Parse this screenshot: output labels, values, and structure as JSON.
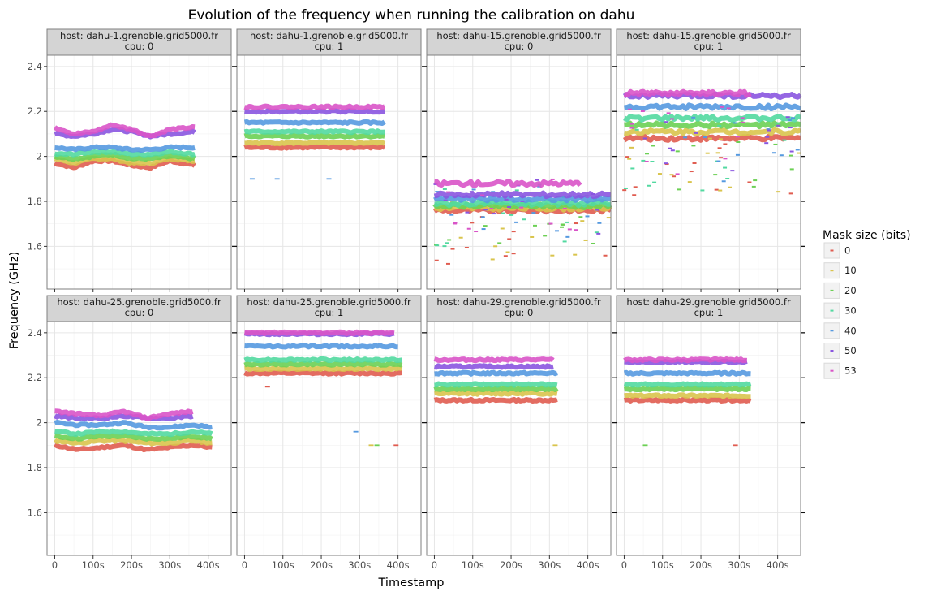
{
  "chart_data": {
    "type": "scatter",
    "title": "Evolution of the frequency when running the calibration on dahu",
    "xlabel": "Timestamp",
    "ylabel": "Frequency (GHz)",
    "xlim": [
      -20,
      460
    ],
    "ylim": [
      1.41,
      2.45
    ],
    "x_ticks": [
      0,
      100,
      200,
      300,
      400
    ],
    "x_tick_labels": [
      "0",
      "100s",
      "200s",
      "300s",
      "400s"
    ],
    "y_ticks": [
      1.6,
      1.8,
      2.0,
      2.2,
      2.4
    ],
    "y_tick_labels": [
      "1.6",
      "1.8",
      "2",
      "2.2",
      "2.4"
    ],
    "grid": true,
    "legend": {
      "title": "Mask size (bits)",
      "placement": "right",
      "entries": [
        "0",
        "10",
        "20",
        "30",
        "40",
        "50",
        "53"
      ]
    },
    "series_colors": {
      "0": "#e05c50",
      "10": "#d9c44c",
      "20": "#6cd054",
      "30": "#52d9a0",
      "40": "#5599e0",
      "50": "#8a55e0",
      "53": "#d954c8"
    },
    "panels": [
      {
        "host_label": "host: dahu-1.grenoble.grid5000.fr",
        "cpu_label": "cpu: 0",
        "x_end": 365,
        "series": [
          {
            "name": "0",
            "x": [
              0,
              50,
              100,
              150,
              200,
              250,
              300,
              365
            ],
            "y": [
              1.97,
              1.95,
              1.98,
              1.98,
              1.96,
              1.95,
              1.98,
              1.96
            ]
          },
          {
            "name": "10",
            "x": [
              0,
              50,
              100,
              150,
              200,
              250,
              300,
              365
            ],
            "y": [
              1.99,
              1.97,
              1.99,
              1.99,
              1.97,
              1.97,
              1.99,
              1.98
            ]
          },
          {
            "name": "20",
            "x": [
              0,
              50,
              100,
              150,
              200,
              250,
              300,
              365
            ],
            "y": [
              2.0,
              1.99,
              2.0,
              2.01,
              1.99,
              1.99,
              2.0,
              1.99
            ]
          },
          {
            "name": "30",
            "x": [
              0,
              50,
              100,
              150,
              200,
              250,
              300,
              365
            ],
            "y": [
              2.01,
              2.01,
              2.02,
              2.02,
              2.01,
              2.01,
              2.02,
              2.01
            ]
          },
          {
            "name": "40",
            "x": [
              0,
              50,
              100,
              150,
              200,
              250,
              300,
              365
            ],
            "y": [
              2.04,
              2.03,
              2.04,
              2.04,
              2.03,
              2.03,
              2.04,
              2.04
            ]
          },
          {
            "name": "50",
            "x": [
              0,
              50,
              100,
              150,
              200,
              250,
              300,
              365
            ],
            "y": [
              2.1,
              2.09,
              2.1,
              2.12,
              2.11,
              2.09,
              2.1,
              2.11
            ]
          },
          {
            "name": "53",
            "x": [
              0,
              50,
              100,
              150,
              200,
              250,
              300,
              365
            ],
            "y": [
              2.13,
              2.1,
              2.11,
              2.14,
              2.12,
              2.09,
              2.12,
              2.13
            ]
          }
        ],
        "outliers": []
      },
      {
        "host_label": "host: dahu-1.grenoble.grid5000.fr",
        "cpu_label": "cpu: 1",
        "x_end": 365,
        "series": [
          {
            "name": "0",
            "x": [
              0,
              365
            ],
            "y": [
              2.04,
              2.04
            ]
          },
          {
            "name": "10",
            "x": [
              0,
              365
            ],
            "y": [
              2.06,
              2.06
            ]
          },
          {
            "name": "20",
            "x": [
              0,
              365
            ],
            "y": [
              2.09,
              2.09
            ]
          },
          {
            "name": "30",
            "x": [
              0,
              365
            ],
            "y": [
              2.11,
              2.11
            ]
          },
          {
            "name": "40",
            "x": [
              0,
              365
            ],
            "y": [
              2.15,
              2.15
            ]
          },
          {
            "name": "50",
            "x": [
              0,
              365
            ],
            "y": [
              2.2,
              2.2
            ]
          },
          {
            "name": "53",
            "x": [
              0,
              365
            ],
            "y": [
              2.22,
              2.22
            ]
          }
        ],
        "outliers": [
          {
            "name": "40",
            "x": 20,
            "y": 1.9
          },
          {
            "name": "40",
            "x": 85,
            "y": 1.9
          },
          {
            "name": "40",
            "x": 220,
            "y": 1.9
          }
        ]
      },
      {
        "host_label": "host: dahu-15.grenoble.grid5000.fr",
        "cpu_label": "cpu: 0",
        "x_end": 460,
        "series": [
          {
            "name": "0",
            "x": [
              0,
              460
            ],
            "y": [
              1.76,
              1.76
            ]
          },
          {
            "name": "10",
            "x": [
              0,
              460
            ],
            "y": [
              1.77,
              1.77
            ]
          },
          {
            "name": "20",
            "x": [
              0,
              460
            ],
            "y": [
              1.78,
              1.78
            ]
          },
          {
            "name": "30",
            "x": [
              0,
              460
            ],
            "y": [
              1.79,
              1.79
            ]
          },
          {
            "name": "40",
            "x": [
              0,
              460
            ],
            "y": [
              1.81,
              1.81
            ]
          },
          {
            "name": "50",
            "x": [
              0,
              460
            ],
            "y": [
              1.83,
              1.83
            ]
          },
          {
            "name": "53",
            "x": [
              0,
              380
            ],
            "y": [
              1.88,
              1.88
            ]
          }
        ],
        "outliers": []
      },
      {
        "host_label": "host: dahu-15.grenoble.grid5000.fr",
        "cpu_label": "cpu: 1",
        "x_end": 460,
        "series": [
          {
            "name": "0",
            "x": [
              0,
              460
            ],
            "y": [
              2.08,
              2.08
            ]
          },
          {
            "name": "10",
            "x": [
              0,
              460
            ],
            "y": [
              2.11,
              2.11
            ]
          },
          {
            "name": "20",
            "x": [
              0,
              460
            ],
            "y": [
              2.14,
              2.14
            ]
          },
          {
            "name": "30",
            "x": [
              0,
              460
            ],
            "y": [
              2.17,
              2.17
            ]
          },
          {
            "name": "40",
            "x": [
              0,
              460
            ],
            "y": [
              2.22,
              2.22
            ]
          },
          {
            "name": "50",
            "x": [
              0,
              460
            ],
            "y": [
              2.27,
              2.27
            ]
          },
          {
            "name": "53",
            "x": [
              0,
              330
            ],
            "y": [
              2.28,
              2.28
            ]
          }
        ],
        "outliers": []
      },
      {
        "host_label": "host: dahu-25.grenoble.grid5000.fr",
        "cpu_label": "cpu: 0",
        "x_end": 410,
        "series": [
          {
            "name": "0",
            "x": [
              0,
              60,
              120,
              180,
              240,
              300,
              360,
              410
            ],
            "y": [
              1.9,
              1.88,
              1.89,
              1.9,
              1.88,
              1.89,
              1.9,
              1.89
            ]
          },
          {
            "name": "10",
            "x": [
              0,
              60,
              120,
              180,
              240,
              300,
              360,
              410
            ],
            "y": [
              1.92,
              1.91,
              1.92,
              1.92,
              1.91,
              1.91,
              1.92,
              1.91
            ]
          },
          {
            "name": "20",
            "x": [
              0,
              60,
              120,
              180,
              240,
              300,
              360,
              410
            ],
            "y": [
              1.94,
              1.93,
              1.94,
              1.94,
              1.93,
              1.93,
              1.94,
              1.93
            ]
          },
          {
            "name": "30",
            "x": [
              0,
              60,
              120,
              180,
              240,
              300,
              360,
              410
            ],
            "y": [
              1.96,
              1.95,
              1.96,
              1.96,
              1.95,
              1.95,
              1.96,
              1.95
            ]
          },
          {
            "name": "40",
            "x": [
              0,
              60,
              120,
              180,
              240,
              300,
              360,
              410
            ],
            "y": [
              2.0,
              1.99,
              1.99,
              2.0,
              1.98,
              1.98,
              1.99,
              1.98
            ]
          },
          {
            "name": "50",
            "x": [
              0,
              60,
              120,
              180,
              240,
              300,
              360
            ],
            "y": [
              2.03,
              2.02,
              2.02,
              2.03,
              2.02,
              2.02,
              2.03
            ]
          },
          {
            "name": "53",
            "x": [
              0,
              60,
              120,
              180,
              240,
              300,
              360
            ],
            "y": [
              2.05,
              2.04,
              2.03,
              2.05,
              2.02,
              2.04,
              2.05
            ]
          }
        ],
        "outliers": []
      },
      {
        "host_label": "host: dahu-25.grenoble.grid5000.fr",
        "cpu_label": "cpu: 1",
        "x_end": 410,
        "series": [
          {
            "name": "0",
            "x": [
              0,
              410
            ],
            "y": [
              2.22,
              2.22
            ]
          },
          {
            "name": "10",
            "x": [
              0,
              410
            ],
            "y": [
              2.24,
              2.24
            ]
          },
          {
            "name": "20",
            "x": [
              0,
              410
            ],
            "y": [
              2.26,
              2.26
            ]
          },
          {
            "name": "30",
            "x": [
              0,
              410
            ],
            "y": [
              2.28,
              2.28
            ]
          },
          {
            "name": "40",
            "x": [
              0,
              400
            ],
            "y": [
              2.34,
              2.34
            ]
          },
          {
            "name": "50",
            "x": [
              0,
              390
            ],
            "y": [
              2.395,
              2.395
            ]
          },
          {
            "name": "53",
            "x": [
              0,
              390
            ],
            "y": [
              2.4,
              2.4
            ]
          }
        ],
        "outliers": [
          {
            "name": "0",
            "x": 60,
            "y": 2.16
          },
          {
            "name": "40",
            "x": 290,
            "y": 1.96
          },
          {
            "name": "10",
            "x": 330,
            "y": 1.9
          },
          {
            "name": "20",
            "x": 345,
            "y": 1.9
          },
          {
            "name": "0",
            "x": 395,
            "y": 1.9
          }
        ]
      },
      {
        "host_label": "host: dahu-29.grenoble.grid5000.fr",
        "cpu_label": "cpu: 0",
        "x_end": 320,
        "series": [
          {
            "name": "0",
            "x": [
              0,
              320
            ],
            "y": [
              2.1,
              2.1
            ]
          },
          {
            "name": "10",
            "x": [
              0,
              320
            ],
            "y": [
              2.13,
              2.13
            ]
          },
          {
            "name": "20",
            "x": [
              0,
              320
            ],
            "y": [
              2.15,
              2.15
            ]
          },
          {
            "name": "30",
            "x": [
              0,
              320
            ],
            "y": [
              2.17,
              2.17
            ]
          },
          {
            "name": "40",
            "x": [
              0,
              320
            ],
            "y": [
              2.22,
              2.22
            ]
          },
          {
            "name": "50",
            "x": [
              0,
              310
            ],
            "y": [
              2.25,
              2.25
            ]
          },
          {
            "name": "53",
            "x": [
              0,
              310
            ],
            "y": [
              2.28,
              2.28
            ]
          }
        ],
        "outliers": [
          {
            "name": "10",
            "x": 315,
            "y": 1.9
          }
        ]
      },
      {
        "host_label": "host: dahu-29.grenoble.grid5000.fr",
        "cpu_label": "cpu: 1",
        "x_end": 330,
        "series": [
          {
            "name": "0",
            "x": [
              0,
              330
            ],
            "y": [
              2.1,
              2.1
            ]
          },
          {
            "name": "10",
            "x": [
              0,
              330
            ],
            "y": [
              2.12,
              2.12
            ]
          },
          {
            "name": "20",
            "x": [
              0,
              330
            ],
            "y": [
              2.15,
              2.15
            ]
          },
          {
            "name": "30",
            "x": [
              0,
              330
            ],
            "y": [
              2.17,
              2.17
            ]
          },
          {
            "name": "40",
            "x": [
              0,
              330
            ],
            "y": [
              2.22,
              2.22
            ]
          },
          {
            "name": "50",
            "x": [
              0,
              320
            ],
            "y": [
              2.27,
              2.27
            ]
          },
          {
            "name": "53",
            "x": [
              0,
              320
            ],
            "y": [
              2.28,
              2.28
            ]
          }
        ],
        "outliers": [
          {
            "name": "20",
            "x": 55,
            "y": 1.9
          },
          {
            "name": "0",
            "x": 290,
            "y": 1.9
          }
        ]
      }
    ]
  }
}
